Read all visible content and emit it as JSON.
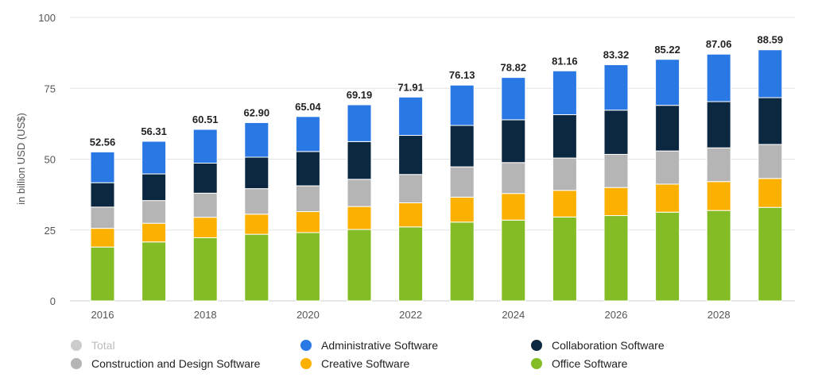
{
  "chart_data": {
    "type": "bar",
    "stacked": true,
    "ylabel": "in billion USD (US$)",
    "ylim": [
      0,
      100
    ],
    "yticks": [
      0,
      25,
      50,
      75,
      100
    ],
    "categories": [
      "2016",
      "2017",
      "2018",
      "2019",
      "2020",
      "2021",
      "2022",
      "2023",
      "2024",
      "2025",
      "2026",
      "2027",
      "2028",
      "2029"
    ],
    "x_tick_labels": [
      "2016",
      "",
      "2018",
      "",
      "2020",
      "",
      "2022",
      "",
      "2024",
      "",
      "2026",
      "",
      "2028",
      ""
    ],
    "totals": [
      "52.56",
      "56.31",
      "60.51",
      "62.90",
      "65.04",
      "69.19",
      "71.91",
      "76.13",
      "78.82",
      "81.16",
      "83.32",
      "85.22",
      "87.06",
      "88.59"
    ],
    "series": [
      {
        "name": "Office Software",
        "color": "#84bc26",
        "values": [
          19.0,
          20.8,
          22.3,
          23.5,
          24.1,
          25.2,
          26.1,
          27.8,
          28.5,
          29.6,
          30.1,
          31.3,
          31.9,
          33.0
        ]
      },
      {
        "name": "Creative Software",
        "color": "#fcb000",
        "values": [
          6.6,
          6.6,
          7.2,
          7.1,
          7.4,
          8.1,
          8.5,
          8.8,
          9.4,
          9.4,
          9.9,
          9.9,
          10.2,
          10.2
        ]
      },
      {
        "name": "Construction and Design Software",
        "color": "#b5b5b5",
        "values": [
          7.5,
          8.0,
          8.5,
          9.0,
          9.1,
          9.6,
          10.0,
          10.7,
          10.9,
          11.4,
          11.7,
          11.7,
          11.9,
          12.0
        ]
      },
      {
        "name": "Collaboration Software",
        "color": "#0c2840",
        "values": [
          8.6,
          9.4,
          10.6,
          11.1,
          12.1,
          13.3,
          13.8,
          14.6,
          15.1,
          15.3,
          15.6,
          16.1,
          16.3,
          16.5
        ]
      },
      {
        "name": "Administrative Software",
        "color": "#2a78e4",
        "values": [
          10.86,
          11.51,
          11.91,
          12.2,
          12.34,
          12.99,
          13.51,
          14.23,
          14.92,
          15.46,
          16.02,
          16.22,
          16.76,
          16.89
        ]
      }
    ],
    "legend": {
      "placement": "bottom",
      "items": [
        {
          "label": "Total",
          "color": "#cccccc",
          "inactive": true
        },
        {
          "label": "Administrative Software",
          "color": "#2a78e4"
        },
        {
          "label": "Collaboration Software",
          "color": "#0c2840"
        },
        {
          "label": "Construction and Design Software",
          "color": "#b5b5b5"
        },
        {
          "label": "Creative Software",
          "color": "#fcb000"
        },
        {
          "label": "Office Software",
          "color": "#84bc26"
        }
      ]
    },
    "grid": true
  }
}
